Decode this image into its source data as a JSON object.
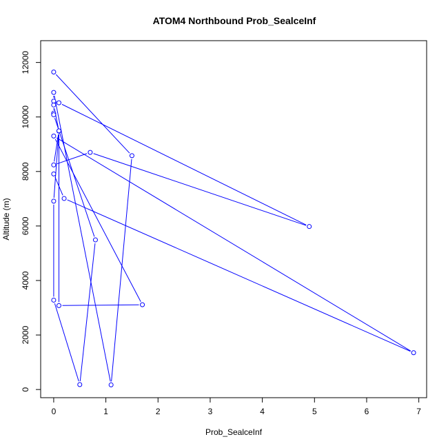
{
  "chart_data": {
    "type": "line",
    "title": "ATOM4 Northbound Prob_SealceInf",
    "xlabel": "Prob_SealceInf",
    "ylabel": "Altitude (m)",
    "xlim": [
      -0.25,
      7.15
    ],
    "ylim": [
      -300,
      12800
    ],
    "xticks": [
      0,
      1,
      2,
      3,
      4,
      5,
      6,
      7
    ],
    "xtick_labels": [
      "0",
      "1",
      "2",
      "3",
      "4",
      "5",
      "6",
      "7"
    ],
    "yticks": [
      0,
      2000,
      4000,
      6000,
      8000,
      10000,
      12000
    ],
    "ytick_labels": [
      "0",
      "2000",
      "4000",
      "6000",
      "8000",
      "10000",
      "12000"
    ],
    "grid": false,
    "legend": "none",
    "line_color": "#0000ff",
    "marker": "open-circle",
    "points": [
      {
        "x": 0.0,
        "y": 11650
      },
      {
        "x": 1.5,
        "y": 8580
      },
      {
        "x": 1.1,
        "y": 170
      },
      {
        "x": 0.0,
        "y": 10900
      },
      {
        "x": 0.0,
        "y": 10580
      },
      {
        "x": 0.1,
        "y": 10520
      },
      {
        "x": 4.9,
        "y": 5980
      },
      {
        "x": 0.7,
        "y": 8700
      },
      {
        "x": 0.0,
        "y": 8240
      },
      {
        "x": 0.1,
        "y": 9480
      },
      {
        "x": 0.0,
        "y": 10440
      },
      {
        "x": 0.0,
        "y": 10140
      },
      {
        "x": 0.0,
        "y": 10080
      },
      {
        "x": 0.8,
        "y": 5490
      },
      {
        "x": 0.5,
        "y": 180
      },
      {
        "x": 0.0,
        "y": 3280
      },
      {
        "x": 0.0,
        "y": 6910
      },
      {
        "x": 0.1,
        "y": 9490
      },
      {
        "x": 0.1,
        "y": 3080
      },
      {
        "x": 1.7,
        "y": 3110
      },
      {
        "x": 0.0,
        "y": 9300
      },
      {
        "x": 6.9,
        "y": 1350
      },
      {
        "x": 0.2,
        "y": 7010
      },
      {
        "x": 0.0,
        "y": 7910
      }
    ]
  }
}
